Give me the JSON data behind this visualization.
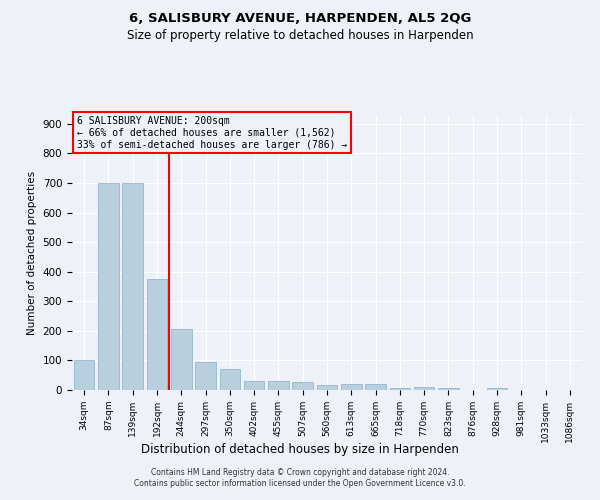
{
  "title": "6, SALISBURY AVENUE, HARPENDEN, AL5 2QG",
  "subtitle": "Size of property relative to detached houses in Harpenden",
  "xlabel": "Distribution of detached houses by size in Harpenden",
  "ylabel": "Number of detached properties",
  "categories": [
    "34sqm",
    "87sqm",
    "139sqm",
    "192sqm",
    "244sqm",
    "297sqm",
    "350sqm",
    "402sqm",
    "455sqm",
    "507sqm",
    "560sqm",
    "613sqm",
    "665sqm",
    "718sqm",
    "770sqm",
    "823sqm",
    "876sqm",
    "928sqm",
    "981sqm",
    "1033sqm",
    "1086sqm"
  ],
  "values": [
    100,
    700,
    700,
    375,
    205,
    95,
    72,
    30,
    30,
    28,
    18,
    20,
    20,
    8,
    10,
    8,
    0,
    8,
    0,
    0,
    0
  ],
  "bar_color": "#b8cfe0",
  "bar_edgecolor": "#8aafc8",
  "red_line_x": 3.5,
  "annotation_title": "6 SALISBURY AVENUE: 200sqm",
  "annotation_line1": "← 66% of detached houses are smaller (1,562)",
  "annotation_line2": "33% of semi-detached houses are larger (786) →",
  "ylim": [
    0,
    930
  ],
  "yticks": [
    0,
    100,
    200,
    300,
    400,
    500,
    600,
    700,
    800,
    900
  ],
  "footer1": "Contains HM Land Registry data © Crown copyright and database right 2024.",
  "footer2": "Contains public sector information licensed under the Open Government Licence v3.0.",
  "bg_color": "#eef2f8",
  "grid_color": "#ffffff"
}
